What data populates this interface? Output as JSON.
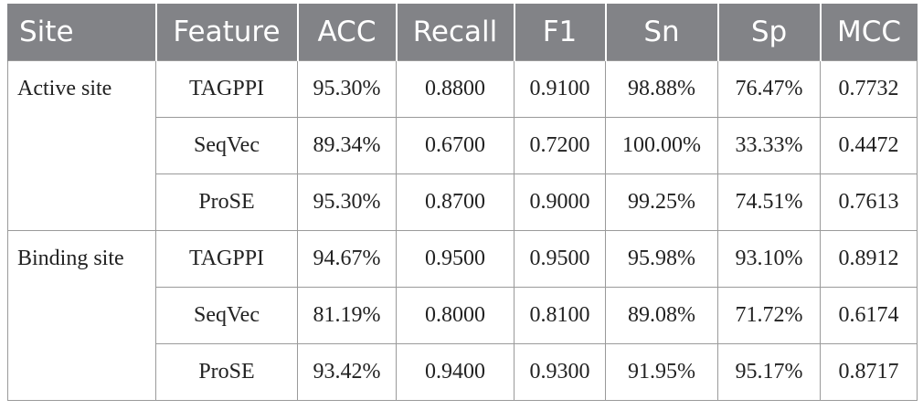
{
  "table": {
    "header": [
      "Site",
      "Feature",
      "ACC",
      "Recall",
      "F1",
      "Sn",
      "Sp",
      "MCC"
    ],
    "groups": [
      {
        "site": "Active site",
        "rows": [
          [
            "TAGPPI",
            "95.30%",
            "0.8800",
            "0.9100",
            "98.88%",
            "76.47%",
            "0.7732"
          ],
          [
            "SeqVec",
            "89.34%",
            "0.6700",
            "0.7200",
            "100.00%",
            "33.33%",
            "0.4472"
          ],
          [
            "ProSE",
            "95.30%",
            "0.8700",
            "0.9000",
            "99.25%",
            "74.51%",
            "0.7613"
          ]
        ]
      },
      {
        "site": "Binding site",
        "rows": [
          [
            "TAGPPI",
            "94.67%",
            "0.9500",
            "0.9500",
            "95.98%",
            "93.10%",
            "0.8912"
          ],
          [
            "SeqVec",
            "81.19%",
            "0.8000",
            "0.8100",
            "89.08%",
            "71.72%",
            "0.6174"
          ],
          [
            "ProSE",
            "93.42%",
            "0.9400",
            "0.9300",
            "91.95%",
            "95.17%",
            "0.8717"
          ]
        ]
      }
    ]
  }
}
